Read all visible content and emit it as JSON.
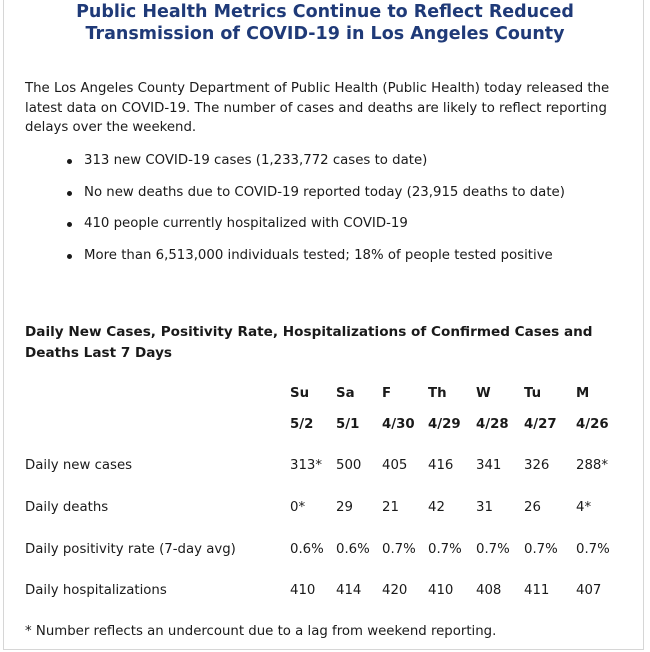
{
  "title": {
    "line1": "Public Health Metrics Continue to Reflect Reduced",
    "line2": "Transmission of COVID-19 in Los Angeles County"
  },
  "intro": "The Los Angeles County Department of Public Health (Public Health) today released the latest data on COVID-19. The number of cases and deaths are likely to reflect reporting delays over the weekend.",
  "bullets": [
    "313 new COVID-19 cases (1,233,772 cases to date)",
    "No new deaths due to COVID-19 reported today (23,915 deaths to date)",
    "410 people currently hospitalized with COVID-19",
    "More than 6,513,000 individuals tested; 18% of people tested positive"
  ],
  "section_title": "Daily New Cases, Positivity Rate, Hospitalizations of Confirmed Cases and Deaths Last 7 Days",
  "table": {
    "days": [
      "Su",
      "Sa",
      "F",
      "Th",
      "W",
      "Tu",
      "M"
    ],
    "dates": [
      "5/2",
      "5/1",
      "4/30",
      "4/29",
      "4/28",
      "4/27",
      "4/26"
    ],
    "rows": [
      {
        "label": "Daily new cases",
        "values": [
          "313*",
          "500",
          "405",
          "416",
          "341",
          "326",
          "288*"
        ]
      },
      {
        "label": "Daily deaths",
        "values": [
          "0*",
          "29",
          "21",
          "42",
          "31",
          "26",
          "4*"
        ]
      },
      {
        "label": "Daily positivity rate (7-day avg)",
        "values": [
          "0.6%",
          "0.6%",
          "0.7%",
          "0.7%",
          "0.7%",
          "0.7%",
          "0.7%"
        ]
      },
      {
        "label": "Daily hospitalizations",
        "values": [
          "410",
          "414",
          "420",
          "410",
          "408",
          "411",
          "407"
        ]
      }
    ]
  },
  "footnote": "* Number reflects an undercount due to a lag from weekend reporting."
}
